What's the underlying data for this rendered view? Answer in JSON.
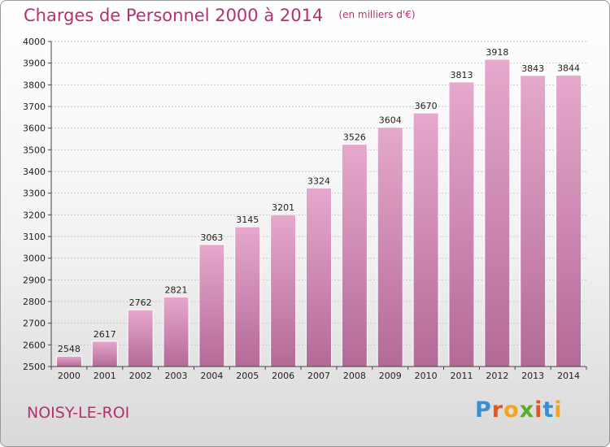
{
  "chart_data": {
    "type": "bar",
    "title": "Charges de Personnel 2000 à 2014",
    "subtitle": "(en milliers d'€)",
    "xlabel": "",
    "ylabel": "",
    "categories": [
      "2000",
      "2001",
      "2002",
      "2003",
      "2004",
      "2005",
      "2006",
      "2007",
      "2008",
      "2009",
      "2010",
      "2011",
      "2012",
      "2013",
      "2014"
    ],
    "values": [
      2548,
      2617,
      2762,
      2821,
      3063,
      3145,
      3201,
      3324,
      3526,
      3604,
      3670,
      3813,
      3918,
      3843,
      3844
    ],
    "ylim": [
      2500,
      4000
    ],
    "yticks": [
      2500,
      2600,
      2700,
      2800,
      2900,
      3000,
      3100,
      3200,
      3300,
      3400,
      3500,
      3600,
      3700,
      3800,
      3900,
      4000
    ],
    "grid": true,
    "bar_color": "#d98cb8"
  },
  "footer": {
    "commune": "NOISY-LE-ROI",
    "logo_letters": [
      "P",
      "r",
      "o",
      "x",
      "i",
      "t",
      "i"
    ],
    "logo_colors": [
      "#3a8fd1",
      "#e8541b",
      "#f2a41a",
      "#5aab2e",
      "#e8541b",
      "#3a8fd1",
      "#f2a41a"
    ]
  }
}
